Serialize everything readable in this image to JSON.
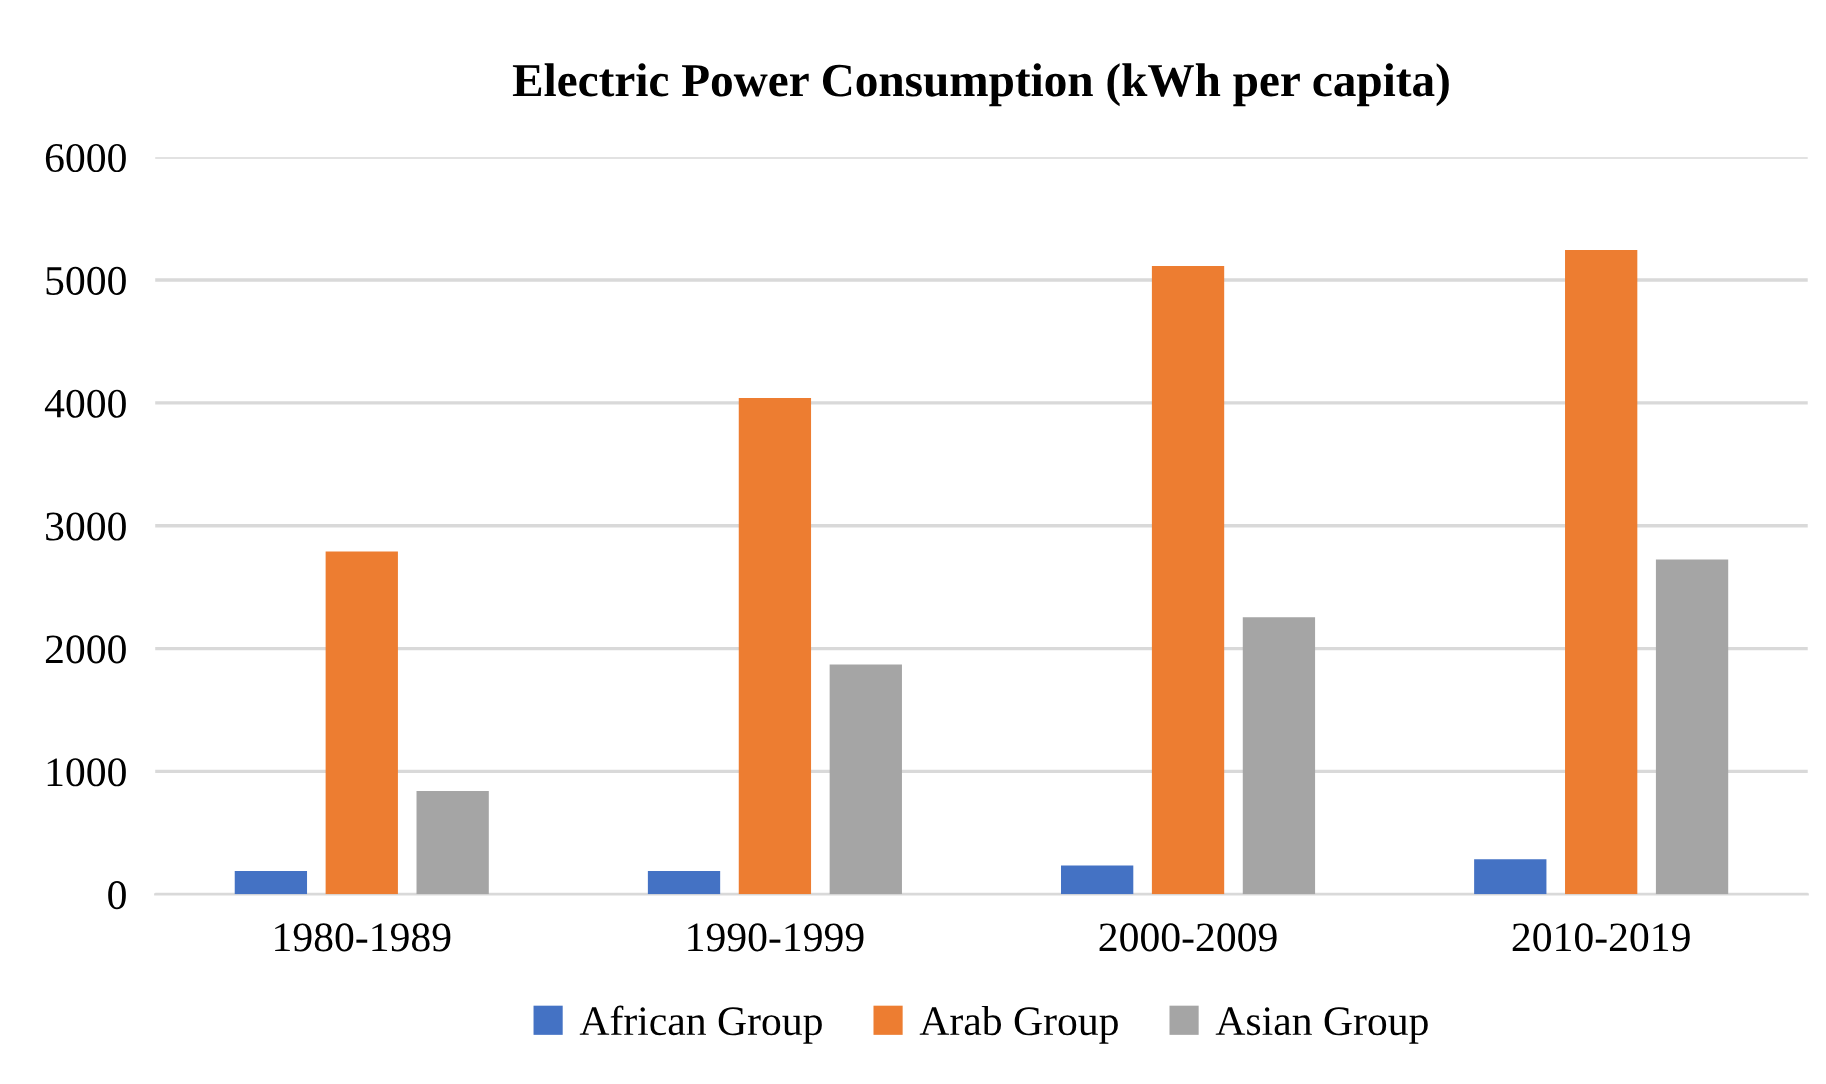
{
  "chart_data": {
    "type": "bar",
    "title": "Electric Power Consumption (kWh per capita)",
    "categories": [
      "1980-1989",
      "1990-1999",
      "2000-2009",
      "2010-2019"
    ],
    "series": [
      {
        "name": "African Group",
        "color": "#4472c4",
        "values": [
          190,
          190,
          235,
          285
        ]
      },
      {
        "name": "Arab Group",
        "color": "#ed7d31",
        "values": [
          2790,
          4040,
          5115,
          5245
        ]
      },
      {
        "name": "Asian Group",
        "color": "#a5a5a5",
        "values": [
          840,
          1870,
          2255,
          2725
        ]
      }
    ],
    "ylim": [
      0,
      6000
    ],
    "yticks": [
      0,
      1000,
      2000,
      3000,
      4000,
      5000,
      6000
    ],
    "grid": "y",
    "legend": "bottom"
  }
}
